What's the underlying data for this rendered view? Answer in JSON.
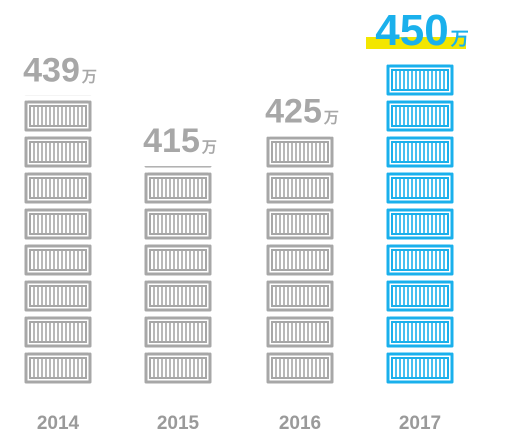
{
  "chart_data": {
    "type": "pictorial-bar",
    "categories": [
      "2014",
      "2015",
      "2016",
      "2017"
    ],
    "values": [
      439,
      415,
      425,
      450
    ],
    "unit": "万",
    "colors": [
      "#a7a7a7",
      "#a7a7a7",
      "#a7a7a7",
      "#1ab0ec"
    ],
    "highlight_index": 3,
    "highlight_color": "#f3e600",
    "ylim": [
      340,
      450
    ]
  }
}
